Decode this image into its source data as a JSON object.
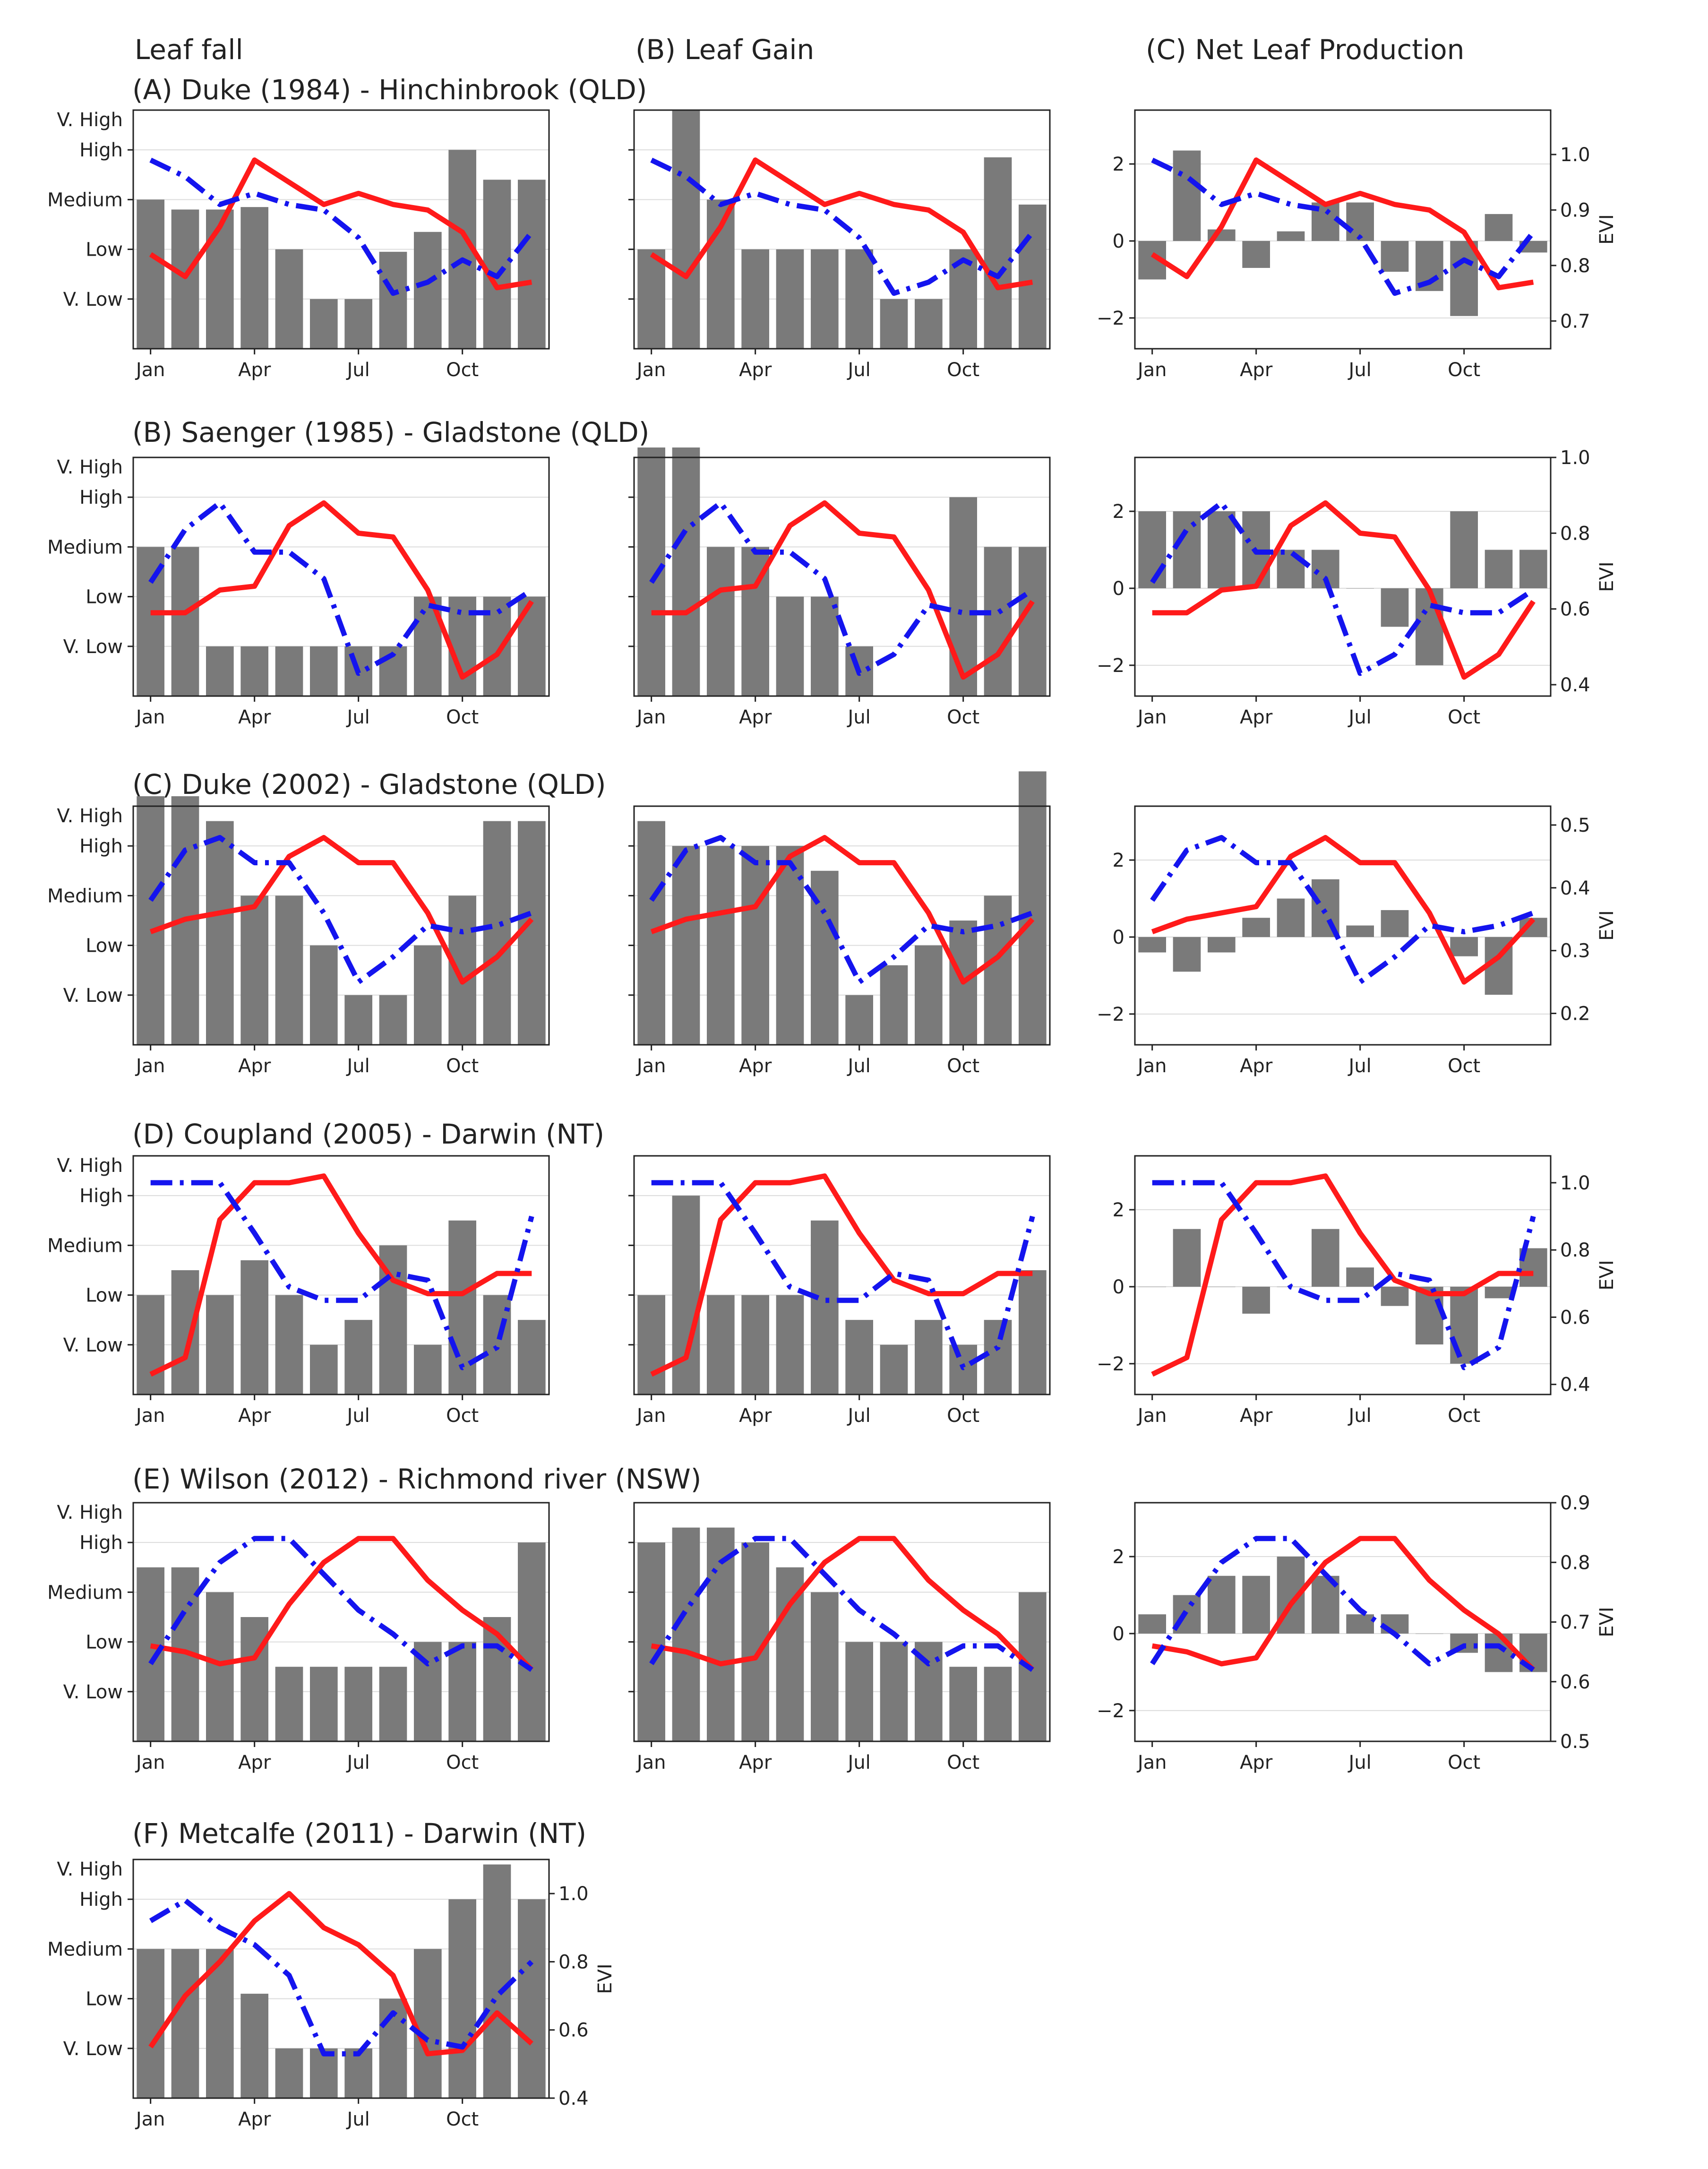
{
  "figure": {
    "column_titles": [
      "Leaf fall",
      "(B) Leaf Gain",
      "(C) Net Leaf Production"
    ],
    "row_titles": [
      "(A) Duke (1984) - Hinchinbrook (QLD)",
      "(B) Saenger (1985) - Gladstone (QLD)",
      "(C) Duke (2002) - Gladstone (QLD)",
      "(D) Coupland (2005) - Darwin (NT)",
      "(E) Wilson (2012) - Richmond river (NSW)",
      "(F) Metcalfe (2011) - Darwin (NT)"
    ],
    "category_ticks": [
      "V. Low",
      "Low",
      "Medium",
      "High",
      "V. High"
    ],
    "net_ticks": [
      "−2",
      "0",
      "2"
    ],
    "month_ticks": [
      "Jan",
      "Apr",
      "Jul",
      "Oct"
    ],
    "evi_label": "EVI",
    "colors": {
      "bar": "#7a7a7a",
      "red_line": "#ff1a1a",
      "blue_line": "#1414ee",
      "grid": "#dcdcdc",
      "frame": "#222222"
    }
  },
  "chart_data": [
    {
      "row": "A",
      "type": "combo",
      "title": "(A) Duke (1984) - Hinchinbrook (QLD)",
      "months": [
        "Jan",
        "Feb",
        "Mar",
        "Apr",
        "May",
        "Jun",
        "Jul",
        "Aug",
        "Sep",
        "Oct",
        "Nov",
        "Dec"
      ],
      "xticks": [
        "Jan",
        "Apr",
        "Jul",
        "Oct"
      ],
      "evi_ylim": [
        0.65,
        1.08
      ],
      "evi_ticks": [
        "0.7",
        "0.8",
        "0.9",
        "1.0"
      ],
      "evi_red": [
        0.82,
        0.78,
        0.87,
        0.99,
        0.95,
        0.91,
        0.93,
        0.91,
        0.9,
        0.86,
        0.76,
        0.77
      ],
      "evi_blue": [
        0.99,
        0.96,
        0.91,
        0.93,
        0.91,
        0.9,
        0.85,
        0.75,
        0.77,
        0.81,
        0.78,
        0.86
      ],
      "leaf_fall": [
        3.0,
        2.8,
        2.8,
        2.85,
        2.0,
        1.0,
        1.0,
        1.95,
        2.35,
        4.0,
        3.4,
        3.4
      ],
      "leaf_gain": [
        2.0,
        4.8,
        3.0,
        2.0,
        2.0,
        2.0,
        2.0,
        1.0,
        1.0,
        2.0,
        3.85,
        2.9
      ],
      "net": [
        -1.0,
        2.35,
        0.3,
        -0.7,
        0.25,
        1.0,
        1.0,
        -0.8,
        -1.3,
        -1.95,
        0.7,
        -0.3
      ]
    },
    {
      "row": "B",
      "type": "combo",
      "title": "(B) Saenger (1985) - Gladstone (QLD)",
      "months": [
        "Jan",
        "Feb",
        "Mar",
        "Apr",
        "May",
        "Jun",
        "Jul",
        "Aug",
        "Sep",
        "Oct",
        "Nov",
        "Dec"
      ],
      "xticks": [
        "Jan",
        "Apr",
        "Jul",
        "Oct"
      ],
      "evi_ylim": [
        0.37,
        1.0
      ],
      "evi_ticks": [
        "0.4",
        "0.6",
        "0.8",
        "1.0"
      ],
      "evi_red": [
        0.59,
        0.59,
        0.65,
        0.66,
        0.82,
        0.88,
        0.8,
        0.79,
        0.65,
        0.42,
        0.48,
        0.62
      ],
      "evi_blue": [
        0.67,
        0.81,
        0.88,
        0.75,
        0.75,
        0.68,
        0.43,
        0.48,
        0.61,
        0.59,
        0.59,
        0.65
      ],
      "leaf_fall": [
        3.0,
        3.0,
        1.0,
        1.0,
        1.0,
        1.0,
        1.0,
        1.0,
        2.0,
        2.0,
        2.0,
        2.0
      ],
      "leaf_gain": [
        5.0,
        5.0,
        3.0,
        3.0,
        2.0,
        2.0,
        1.0,
        0.0,
        0.0,
        4.0,
        3.0,
        3.0
      ],
      "net": [
        2.0,
        2.0,
        2.0,
        2.0,
        1.0,
        1.0,
        0.0,
        -1.0,
        -2.0,
        2.0,
        1.0,
        1.0
      ]
    },
    {
      "row": "C",
      "type": "combo",
      "title": "(C) Duke (2002) - Gladstone (QLD)",
      "months": [
        "Jan",
        "Feb",
        "Mar",
        "Apr",
        "May",
        "Jun",
        "Jul",
        "Aug",
        "Sep",
        "Oct",
        "Nov",
        "Dec"
      ],
      "xticks": [
        "Jan",
        "Apr",
        "Jul",
        "Oct"
      ],
      "evi_ylim": [
        0.15,
        0.53
      ],
      "evi_ticks": [
        "0.2",
        "0.3",
        "0.4",
        "0.5"
      ],
      "evi_red": [
        0.33,
        0.35,
        0.36,
        0.37,
        0.45,
        0.48,
        0.44,
        0.44,
        0.36,
        0.25,
        0.29,
        0.35
      ],
      "evi_blue": [
        0.38,
        0.46,
        0.48,
        0.44,
        0.44,
        0.36,
        0.25,
        0.29,
        0.34,
        0.33,
        0.34,
        0.36
      ],
      "leaf_fall": [
        5.0,
        5.0,
        4.5,
        3.0,
        3.0,
        2.0,
        1.0,
        1.0,
        2.0,
        3.0,
        4.5,
        4.5
      ],
      "leaf_gain": [
        4.5,
        4.0,
        4.0,
        4.0,
        4.0,
        3.5,
        1.0,
        1.6,
        2.0,
        2.5,
        3.0,
        5.5
      ],
      "net": [
        -0.4,
        -0.9,
        -0.4,
        0.5,
        1.0,
        1.5,
        0.3,
        0.7,
        0.0,
        -0.5,
        -1.5,
        0.5
      ]
    },
    {
      "row": "D",
      "type": "combo",
      "title": "(D) Coupland (2005) - Darwin (NT)",
      "months": [
        "Jan",
        "Feb",
        "Mar",
        "Apr",
        "May",
        "Jun",
        "Jul",
        "Aug",
        "Sep",
        "Oct",
        "Nov",
        "Dec"
      ],
      "xticks": [
        "Jan",
        "Apr",
        "Jul",
        "Oct"
      ],
      "evi_ylim": [
        0.37,
        1.08
      ],
      "evi_ticks": [
        "0.4",
        "0.6",
        "0.8",
        "1.0"
      ],
      "evi_red": [
        0.43,
        0.48,
        0.89,
        1.0,
        1.0,
        1.02,
        0.85,
        0.71,
        0.67,
        0.67,
        0.73,
        0.73
      ],
      "evi_blue": [
        1.0,
        1.0,
        1.0,
        0.85,
        0.69,
        0.65,
        0.65,
        0.73,
        0.71,
        0.45,
        0.51,
        0.9
      ],
      "leaf_fall": [
        2.0,
        2.5,
        2.0,
        2.7,
        2.0,
        1.0,
        1.5,
        3.0,
        1.0,
        3.5,
        2.0,
        1.5
      ],
      "leaf_gain": [
        2.0,
        4.0,
        2.0,
        2.0,
        2.0,
        3.5,
        1.5,
        1.0,
        1.5,
        1.0,
        1.5,
        2.5
      ],
      "net": [
        0.0,
        1.5,
        0.0,
        -0.7,
        0.0,
        1.5,
        0.5,
        -0.5,
        -1.5,
        -2.0,
        -0.3,
        1.0
      ]
    },
    {
      "row": "E",
      "type": "combo",
      "title": "(E) Wilson (2012) - Richmond river (NSW)",
      "months": [
        "Jan",
        "Feb",
        "Mar",
        "Apr",
        "May",
        "Jun",
        "Jul",
        "Aug",
        "Sep",
        "Oct",
        "Nov",
        "Dec"
      ],
      "xticks": [
        "Jan",
        "Apr",
        "Jul",
        "Oct"
      ],
      "evi_ylim": [
        0.5,
        0.9
      ],
      "evi_ticks": [
        "0.5",
        "0.6",
        "0.7",
        "0.8",
        "0.9"
      ],
      "evi_red": [
        0.66,
        0.65,
        0.63,
        0.64,
        0.73,
        0.8,
        0.84,
        0.84,
        0.77,
        0.72,
        0.68,
        0.62
      ],
      "evi_blue": [
        0.63,
        0.72,
        0.8,
        0.84,
        0.84,
        0.78,
        0.72,
        0.68,
        0.63,
        0.66,
        0.66,
        0.62
      ],
      "leaf_fall": [
        3.5,
        3.5,
        3.0,
        2.5,
        1.5,
        1.5,
        1.5,
        1.5,
        2.0,
        2.0,
        2.5,
        4.0
      ],
      "leaf_gain": [
        4.0,
        4.3,
        4.3,
        4.0,
        3.5,
        3.0,
        2.0,
        2.0,
        2.0,
        1.5,
        1.5,
        3.0
      ],
      "net": [
        0.5,
        1.0,
        1.5,
        1.5,
        2.0,
        1.5,
        0.5,
        0.5,
        0.0,
        -0.5,
        -1.0,
        -1.0
      ]
    },
    {
      "row": "F",
      "type": "combo",
      "title": "(F) Metcalfe (2011) - Darwin (NT)",
      "months": [
        "Jan",
        "Feb",
        "Mar",
        "Apr",
        "May",
        "Jun",
        "Jul",
        "Aug",
        "Sep",
        "Oct",
        "Nov",
        "Dec"
      ],
      "xticks": [
        "Jan",
        "Apr",
        "Jul",
        "Oct"
      ],
      "evi_ylim": [
        0.4,
        1.1
      ],
      "evi_ticks": [
        "0.4",
        "0.6",
        "0.8",
        "1.0"
      ],
      "evi_red": [
        0.55,
        0.7,
        0.8,
        0.92,
        1.0,
        0.9,
        0.85,
        0.76,
        0.53,
        0.54,
        0.65,
        0.56
      ],
      "evi_blue": [
        0.92,
        0.98,
        0.9,
        0.85,
        0.76,
        0.53,
        0.53,
        0.65,
        0.57,
        0.55,
        0.7,
        0.8
      ],
      "leaf_fall": [
        3.0,
        3.0,
        3.0,
        2.1,
        1.0,
        1.0,
        1.0,
        2.0,
        3.0,
        4.0,
        4.7,
        4.0
      ]
    }
  ]
}
